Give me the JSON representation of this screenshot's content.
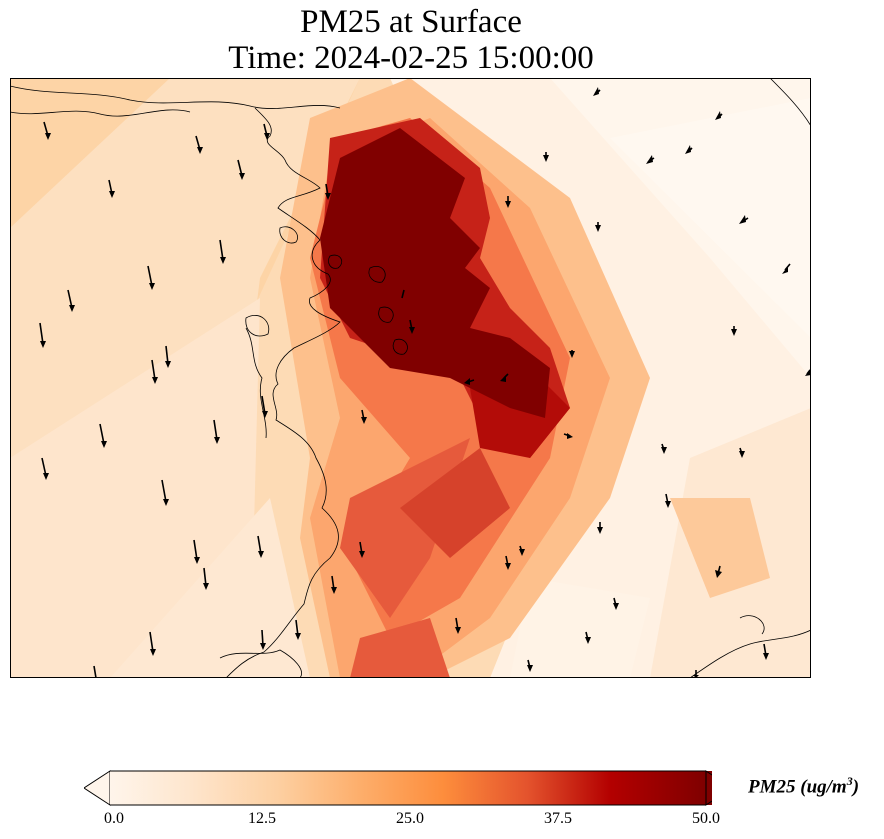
{
  "title_line1": "PM25 at Surface",
  "title_line2": "Time: 2024-02-25 15:00:00",
  "colorbar": {
    "label": "PM25 (ug/m",
    "label_sup": "3",
    "label_close": ")",
    "ticks": [
      "0.0",
      "12.5",
      "25.0",
      "37.5",
      "50.0"
    ],
    "min": 0,
    "max": 50,
    "extend": "both",
    "colormap": [
      "#fff5eb",
      "#fee6ce",
      "#fdd0a2",
      "#fdae6b",
      "#fd8d3c",
      "#f16913",
      "#d94801",
      "#a30000",
      "#7f0000"
    ]
  },
  "layers": [
    "PM25 concentration field",
    "coastline",
    "wind vectors"
  ]
}
